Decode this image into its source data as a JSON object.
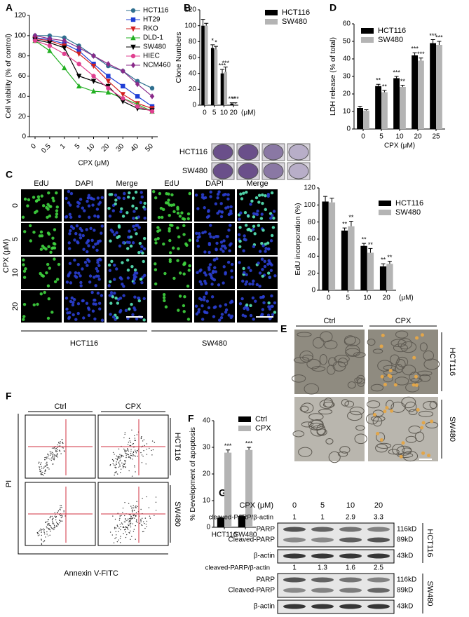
{
  "chart_data": [
    {
      "panel": "A",
      "type": "line",
      "y_label": "Cell viability (% of control)",
      "x_label": "CPX (μM)",
      "categories": [
        "0",
        "0.5",
        "1",
        "5",
        "10",
        "20",
        "30",
        "40",
        "50"
      ],
      "ylim": [
        0,
        120
      ],
      "yticks": [
        0,
        20,
        40,
        60,
        80,
        100,
        120
      ],
      "series": [
        {
          "name": "HCT116",
          "color": "#2f6f8f",
          "marker": "circle",
          "values": [
            100,
            100,
            98,
            90,
            80,
            70,
            65,
            55,
            48
          ]
        },
        {
          "name": "HT29",
          "color": "#1f3fd6",
          "marker": "square",
          "values": [
            98,
            96,
            92,
            85,
            72,
            60,
            50,
            40,
            30
          ]
        },
        {
          "name": "RKO",
          "color": "#d42020",
          "marker": "triangle-down",
          "values": [
            97,
            95,
            90,
            82,
            70,
            55,
            42,
            33,
            28
          ]
        },
        {
          "name": "DLD-1",
          "color": "#22b022",
          "marker": "triangle",
          "values": [
            95,
            85,
            68,
            50,
            45,
            44,
            38,
            32,
            25
          ]
        },
        {
          "name": "SW480",
          "color": "#000000",
          "marker": "triangle-down",
          "values": [
            96,
            93,
            88,
            60,
            55,
            50,
            35,
            28,
            26
          ]
        },
        {
          "name": "HIEC",
          "color": "#e04090",
          "marker": "circle",
          "values": [
            95,
            90,
            82,
            72,
            60,
            48,
            38,
            30,
            25
          ]
        },
        {
          "name": "NCM460",
          "color": "#8a2a8a",
          "marker": "diamond",
          "values": [
            100,
            97,
            95,
            88,
            80,
            72,
            65,
            52,
            40
          ]
        }
      ]
    },
    {
      "panel": "B",
      "type": "bar",
      "y_label": "Clone Numbers",
      "x_unit": "(μM)",
      "categories": [
        "0",
        "5",
        "10",
        "20"
      ],
      "ylim": [
        0,
        120
      ],
      "yticks": [
        0,
        20,
        40,
        60,
        80,
        100,
        120
      ],
      "series": [
        {
          "name": "HCT116",
          "color": "#000000",
          "values": [
            100,
            72,
            40,
            2
          ],
          "errors": [
            8,
            4,
            5,
            1
          ],
          "significance": [
            null,
            "*",
            "***",
            "***"
          ]
        },
        {
          "name": "SW480",
          "color": "#b4b4b4",
          "values": [
            100,
            70,
            42,
            2
          ],
          "errors": [
            3,
            4,
            6,
            1
          ],
          "significance": [
            null,
            "*",
            "***",
            "***"
          ]
        }
      ]
    },
    {
      "panel": "D",
      "type": "bar",
      "y_label": "LDH release (% of total)",
      "x_label": "CPX (μM)",
      "categories": [
        "0",
        "5",
        "10",
        "20",
        "25"
      ],
      "ylim": [
        0,
        60
      ],
      "yticks": [
        0,
        10,
        20,
        30,
        40,
        50,
        60
      ],
      "series": [
        {
          "name": "HCT116",
          "color": "#000000",
          "values": [
            12,
            24.5,
            29,
            42,
            49
          ],
          "errors": [
            1,
            1,
            1,
            1.5,
            2
          ],
          "significance": [
            null,
            "**",
            "***",
            "***",
            "***"
          ]
        },
        {
          "name": "SW480",
          "color": "#b4b4b4",
          "values": [
            10.5,
            21,
            24,
            39,
            48
          ],
          "errors": [
            0.5,
            1,
            1,
            1.5,
            2
          ],
          "significance": [
            null,
            "**",
            "**",
            "***",
            "***"
          ]
        }
      ]
    },
    {
      "panel": "C",
      "type": "bar",
      "y_label": "EdU incorporation (%)",
      "x_unit": "(μM)",
      "categories": [
        "0",
        "5",
        "10",
        "20"
      ],
      "ylim": [
        0,
        120
      ],
      "yticks": [
        0,
        20,
        40,
        60,
        80,
        100,
        120
      ],
      "series": [
        {
          "name": "HCT116",
          "color": "#000000",
          "values": [
            104,
            70,
            52,
            28
          ],
          "errors": [
            6,
            3,
            3,
            3
          ],
          "significance": [
            null,
            "**",
            "**",
            "**"
          ]
        },
        {
          "name": "SW480",
          "color": "#b4b4b4",
          "values": [
            103,
            75,
            44,
            31
          ],
          "errors": [
            5,
            6,
            5,
            3
          ],
          "significance": [
            null,
            "**",
            "**",
            "**"
          ]
        }
      ]
    },
    {
      "panel": "F",
      "type": "bar",
      "y_label": "% Development of apoptosis",
      "categories": [
        "HCT116",
        "SW480"
      ],
      "ylim": [
        0,
        40
      ],
      "yticks": [
        0,
        10,
        20,
        30,
        40
      ],
      "series": [
        {
          "name": "Ctrl",
          "color": "#000000",
          "values": [
            3.5,
            4.2
          ],
          "errors": [
            0.3,
            0.3
          ],
          "significance": [
            null,
            null
          ]
        },
        {
          "name": "CPX",
          "color": "#b4b4b4",
          "values": [
            28,
            29
          ],
          "errors": [
            1,
            1
          ],
          "significance": [
            "***",
            "***"
          ]
        }
      ]
    }
  ],
  "clone_assay": {
    "rows": [
      "HCT116",
      "SW480"
    ]
  },
  "edu_images": {
    "panel": "C",
    "columns": [
      "EdU",
      "DAPI",
      "Merge",
      "EdU",
      "DAPI",
      "Merge"
    ],
    "rows": [
      "0",
      "5",
      "10",
      "20"
    ],
    "y_label": "CPX (μM)",
    "groups": [
      "HCT116",
      "SW480"
    ]
  },
  "morphology": {
    "panel": "E",
    "columns": [
      "Ctrl",
      "CPX"
    ],
    "rows": [
      "HCT116",
      "SW480"
    ]
  },
  "flow_cytometry": {
    "panel": "F",
    "columns": [
      "Ctrl",
      "CPX"
    ],
    "rows": [
      "HCT116",
      "SW480"
    ],
    "y_label": "PI",
    "x_label": "Annexin V-FITC"
  },
  "western_blot": {
    "panel": "G",
    "dose_label": "CPX (μM)",
    "doses": [
      "0",
      "5",
      "10",
      "20"
    ],
    "ratio_label": "cleaved-PARP/β-actin",
    "blots": [
      {
        "cell_line": "HCT116",
        "ratios": [
          1,
          1,
          2.9,
          3.3
        ],
        "bands": [
          {
            "labels": [
              "PARP",
              "Cleaved-PARP"
            ],
            "sizes": [
              "116kD",
              "89kD"
            ]
          },
          {
            "labels": [
              "β-actin"
            ],
            "sizes": [
              "43kD"
            ]
          }
        ]
      },
      {
        "cell_line": "SW480",
        "ratios": [
          1,
          1.3,
          1.6,
          2.5
        ],
        "bands": [
          {
            "labels": [
              "PARP",
              "Cleaved-PARP"
            ],
            "sizes": [
              "116kD",
              "89kD"
            ]
          },
          {
            "labels": [
              "β-actin"
            ],
            "sizes": [
              "43kD"
            ]
          }
        ]
      }
    ]
  }
}
